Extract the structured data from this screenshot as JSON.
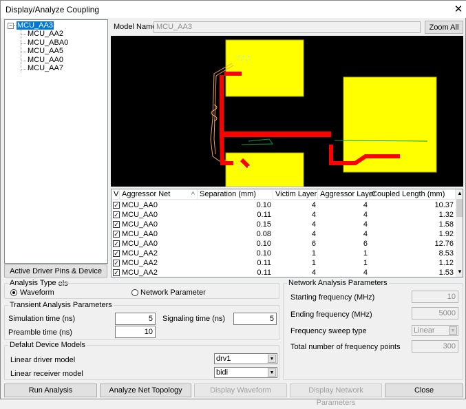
{
  "window": {
    "title": "Display/Analyze Coupling",
    "close_icon": "close-icon"
  },
  "tree": {
    "root": "MCU_AA3",
    "children": [
      "MCU_AA2",
      "MCU_ABA0",
      "MCU_AA5",
      "MCU_AA0",
      "MCU_AA7"
    ]
  },
  "model": {
    "label": "Model Name",
    "value": "MCU_AA3",
    "zoom_all": "Zoom All"
  },
  "active_driver_button": "Active Driver Pins & Device Models",
  "canvas": {
    "colors": {
      "background": "#000000",
      "pads": "#ffff00",
      "aggressor": "#ff0000",
      "victim": "#f4a460",
      "other": "#00a050"
    }
  },
  "table": {
    "columns": [
      "V",
      "Aggressor Net",
      "Separation (mm)",
      "Victim Layer",
      "Aggressor Layer",
      "Coupled Length (mm)"
    ],
    "sorted_column": "Aggressor Net",
    "rows": [
      {
        "checked": true,
        "net": "MCU_AA0",
        "sep": "0.10",
        "victim": "4",
        "aggr": "4",
        "len": "10.37"
      },
      {
        "checked": true,
        "net": "MCU_AA0",
        "sep": "0.11",
        "victim": "4",
        "aggr": "4",
        "len": "1.32"
      },
      {
        "checked": true,
        "net": "MCU_AA0",
        "sep": "0.15",
        "victim": "4",
        "aggr": "4",
        "len": "1.58"
      },
      {
        "checked": true,
        "net": "MCU_AA0",
        "sep": "0.08",
        "victim": "4",
        "aggr": "4",
        "len": "1.92"
      },
      {
        "checked": true,
        "net": "MCU_AA0",
        "sep": "0.10",
        "victim": "6",
        "aggr": "6",
        "len": "12.76"
      },
      {
        "checked": true,
        "net": "MCU_AA2",
        "sep": "0.10",
        "victim": "1",
        "aggr": "1",
        "len": "8.53"
      },
      {
        "checked": true,
        "net": "MCU_AA2",
        "sep": "0.11",
        "victim": "1",
        "aggr": "1",
        "len": "1.12"
      },
      {
        "checked": true,
        "net": "MCU_AA2",
        "sep": "0.11",
        "victim": "4",
        "aggr": "4",
        "len": "1.53"
      }
    ]
  },
  "analysis_type": {
    "title": "Analysis Type",
    "waveform": "Waveform",
    "network": "Network Parameter",
    "selected": "Waveform"
  },
  "transient": {
    "title": "Transient Analysis Parameters",
    "sim_label": "Simulation time (ns)",
    "sim_value": "5",
    "sig_label": "Signaling time (ns)",
    "sig_value": "5",
    "pre_label": "Preamble time (ns)",
    "pre_value": "10"
  },
  "device_models": {
    "title": "Defalut Device Models",
    "driver_label": "Linear driver model",
    "driver_value": "drv1",
    "receiver_label": "Linear receiver model",
    "receiver_value": "bidi"
  },
  "network": {
    "title": "Network Analysis Parameters",
    "start_label": "Starting frequency (MHz)",
    "start_value": "10",
    "end_label": "Ending frequency (MHz)",
    "end_value": "5000",
    "sweep_label": "Frequency sweep type",
    "sweep_value": "Linear",
    "points_label": "Total number of frequency points",
    "points_value": "300"
  },
  "buttons": {
    "run": "Run Analysis",
    "topology": "Analyze Net Topology",
    "waveform": "Display Waveform",
    "netparams": "Display Network Parameters",
    "close": "Close"
  }
}
